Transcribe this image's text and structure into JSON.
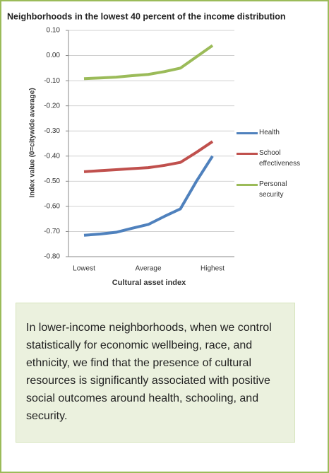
{
  "chart_data": {
    "type": "line",
    "title": "Neighborhoods in the lowest 40 percent of the income distribution",
    "ylabel": "Index value (0=citywide average)",
    "xlabel": "Cultural asset index",
    "categories": [
      "Lowest",
      null,
      null,
      null,
      "Average",
      null,
      null,
      null,
      "Highest"
    ],
    "series": [
      {
        "name": "Health",
        "color": "#4f81bd",
        "values": [
          -0.715,
          -0.71,
          -0.703,
          -0.687,
          -0.672,
          -0.64,
          -0.61,
          -0.5,
          -0.4
        ]
      },
      {
        "name": "School effectiveness",
        "color": "#c0504d",
        "values": [
          -0.462,
          -0.458,
          -0.454,
          -0.45,
          -0.446,
          -0.437,
          -0.425,
          -0.385,
          -0.342
        ]
      },
      {
        "name": "Personal security",
        "color": "#9bbb59",
        "values": [
          -0.092,
          -0.089,
          -0.086,
          -0.08,
          -0.075,
          -0.064,
          -0.05,
          -0.005,
          0.04
        ]
      }
    ],
    "ylim": [
      -0.8,
      0.1
    ],
    "yticks": [
      {
        "value": 0.1,
        "label": "0.10"
      },
      {
        "value": 0,
        "label": "0.00"
      },
      {
        "value": -0.1,
        "label": "-0.10"
      },
      {
        "value": -0.2,
        "label": "-0.20"
      },
      {
        "value": -0.3,
        "label": "-0.30"
      },
      {
        "value": -0.4,
        "label": "-0.40"
      },
      {
        "value": -0.5,
        "label": "-0.50"
      },
      {
        "value": -0.6,
        "label": "-0.60"
      },
      {
        "value": -0.7,
        "label": "-0.70"
      },
      {
        "value": -0.8,
        "label": "-0.80"
      }
    ],
    "grid": true,
    "legend": "right"
  },
  "caption": "In lower-income neighborhoods, when we control statistically for economic wellbeing, race, and ethnicity, we find that the presence of cultural resources is significantly associated with positive social outcomes around health, schooling, and security."
}
